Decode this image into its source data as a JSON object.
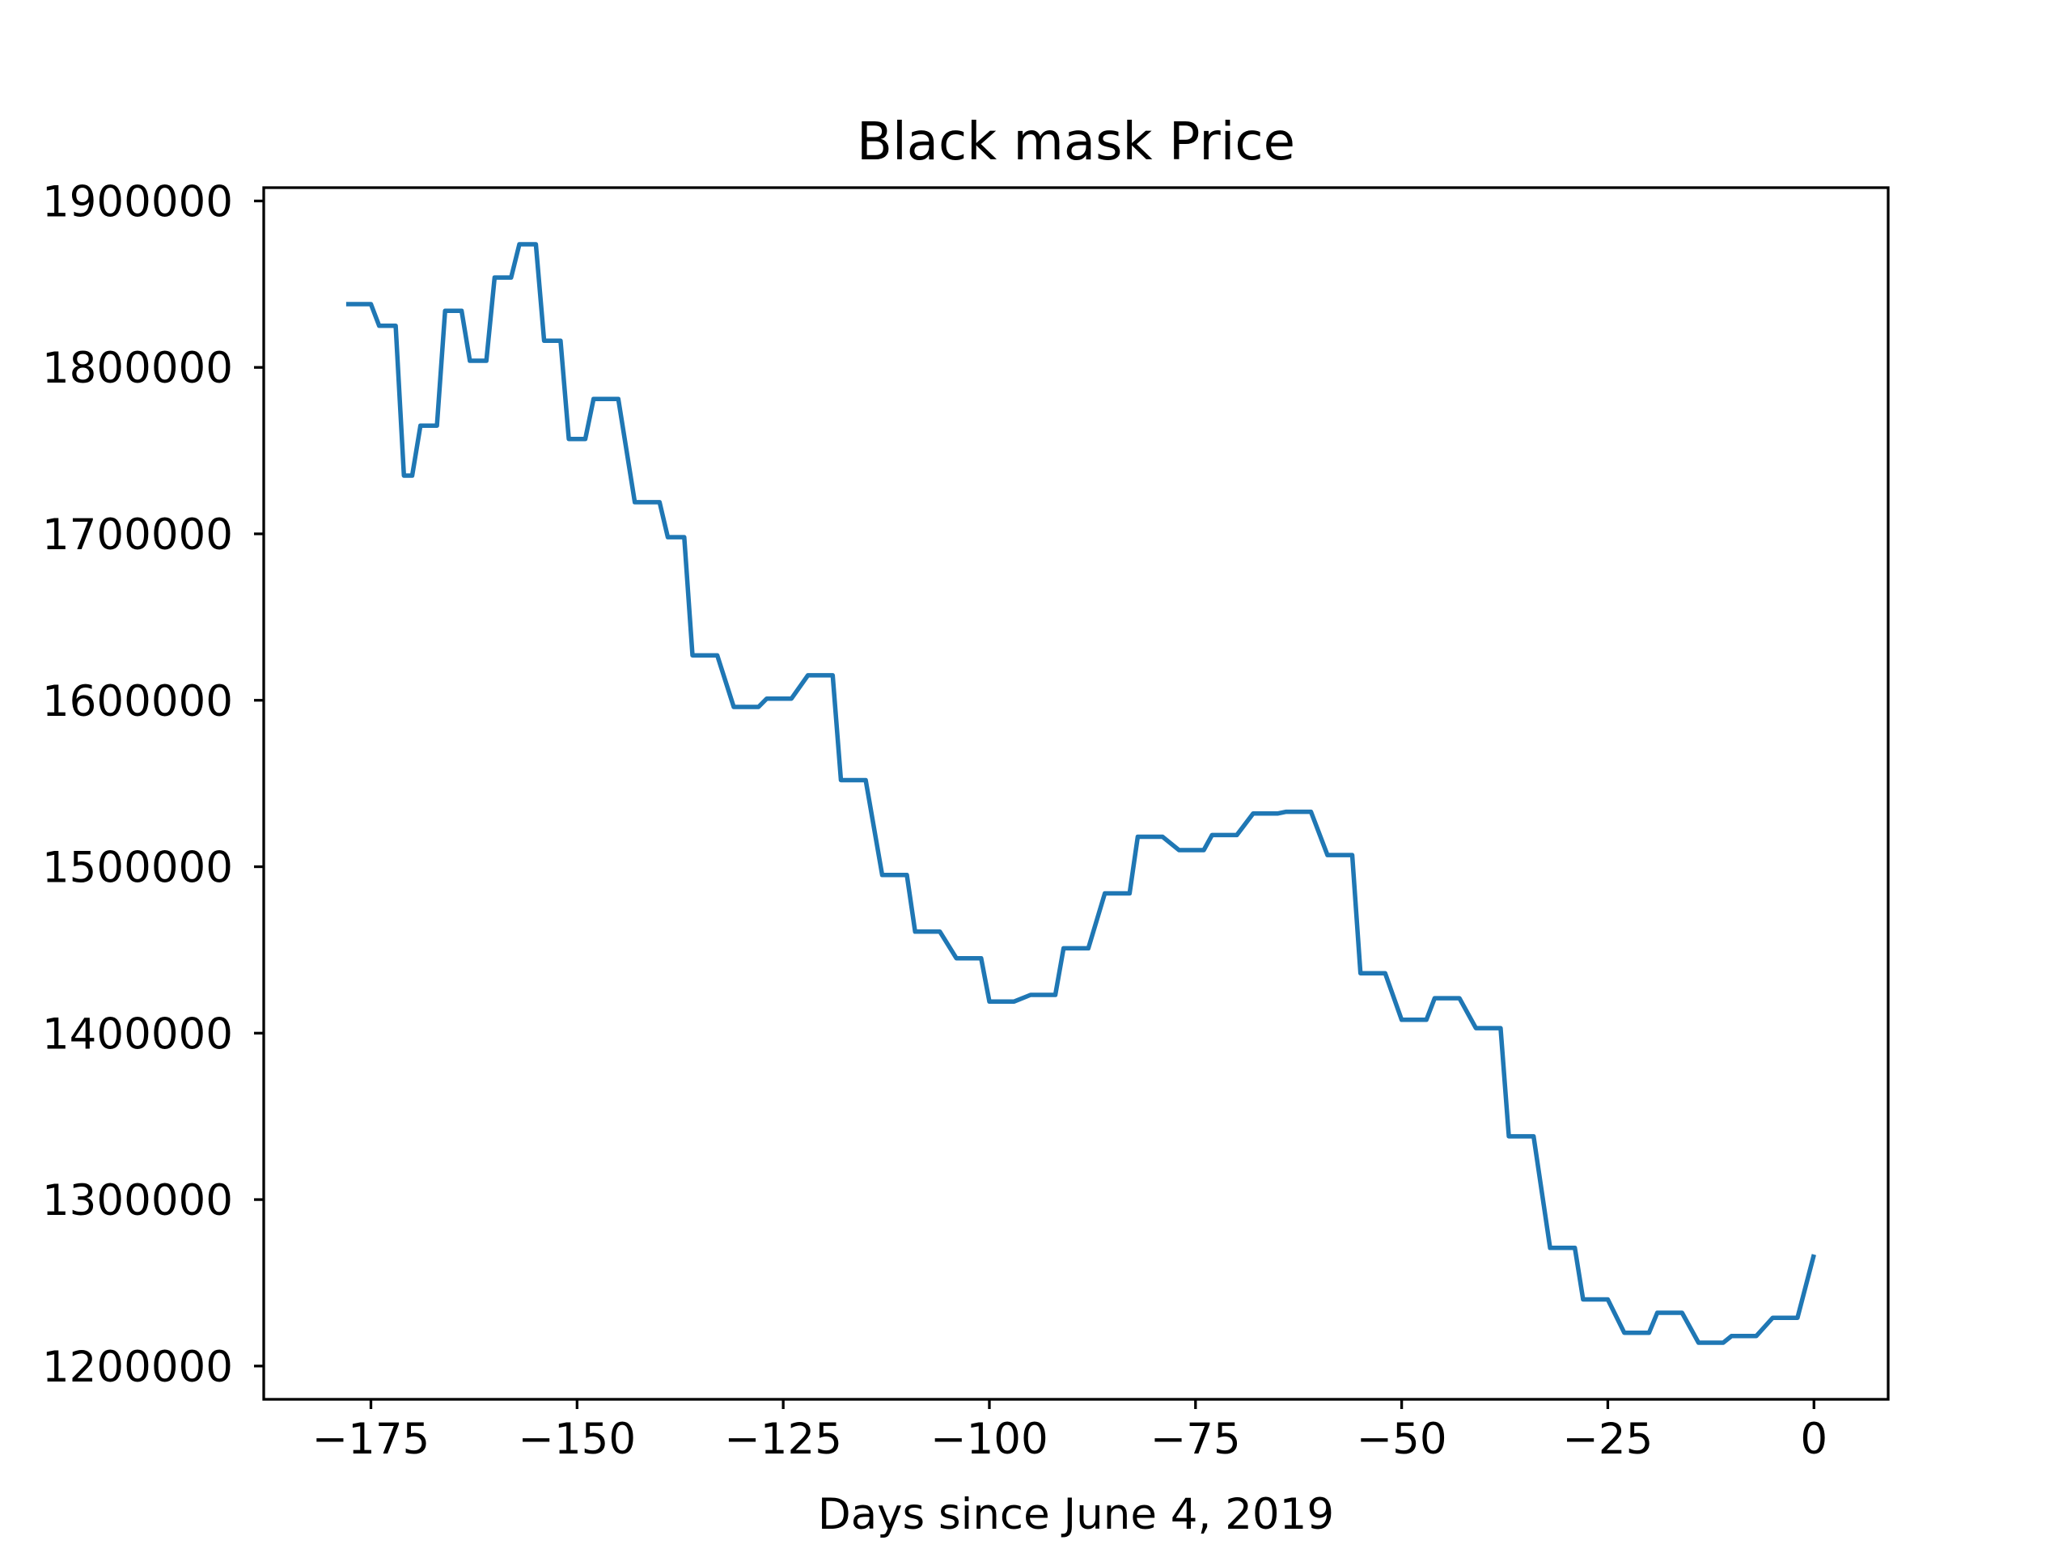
{
  "chart_data": {
    "type": "line",
    "title": "Black mask Price",
    "xlabel": "Days since June 4, 2019",
    "ylabel": "",
    "xlim": [
      -188,
      9
    ],
    "ylim": [
      1180000,
      1908000
    ],
    "grid": false,
    "legend": "none",
    "x_ticks": [
      {
        "value": -175,
        "label": "−175"
      },
      {
        "value": -150,
        "label": "−150"
      },
      {
        "value": -125,
        "label": "−125"
      },
      {
        "value": -100,
        "label": "−100"
      },
      {
        "value": -75,
        "label": "−75"
      },
      {
        "value": -50,
        "label": "−50"
      },
      {
        "value": -25,
        "label": "−25"
      },
      {
        "value": 0,
        "label": "0"
      }
    ],
    "y_ticks": [
      {
        "value": 1200000,
        "label": "1200000"
      },
      {
        "value": 1300000,
        "label": "1300000"
      },
      {
        "value": 1400000,
        "label": "1400000"
      },
      {
        "value": 1500000,
        "label": "1500000"
      },
      {
        "value": 1600000,
        "label": "1600000"
      },
      {
        "value": 1700000,
        "label": "1700000"
      },
      {
        "value": 1800000,
        "label": "1800000"
      },
      {
        "value": 1900000,
        "label": "1900000"
      }
    ],
    "series": [
      {
        "color": "#1f77b4",
        "x": [
          -178,
          -175,
          -174,
          -172,
          -171,
          -170,
          -169,
          -167,
          -166,
          -164,
          -163,
          -161,
          -160,
          -158,
          -157,
          -155,
          -154,
          -152,
          -151,
          -149,
          -148,
          -146,
          -145,
          -143,
          -142,
          -140,
          -139,
          -137,
          -136,
          -134,
          -133,
          -131,
          -130,
          -128,
          -127,
          -125,
          -124,
          -122,
          -121,
          -119,
          -118,
          -116,
          -115,
          -113,
          -112,
          -110,
          -109,
          -107,
          -106,
          -104,
          -103,
          -101,
          -100,
          -98,
          -97,
          -95,
          -94,
          -92,
          -91,
          -89,
          -88,
          -86,
          -85,
          -83,
          -82,
          -80,
          -79,
          -77,
          -76,
          -74,
          -73,
          -71,
          -70,
          -68,
          -67,
          -65,
          -64,
          -62,
          -61,
          -59,
          -58,
          -56,
          -55,
          -53,
          -52,
          -50,
          -49,
          -47,
          -46,
          -44,
          -43,
          -41,
          -40,
          -38,
          -37,
          -35,
          -34,
          -32,
          -31,
          -29,
          -28,
          -26,
          -25,
          -23,
          -22,
          -20,
          -19,
          -17,
          -16,
          -14,
          -13,
          -11,
          -10,
          -8,
          -7,
          -5,
          -4,
          -2,
          0
        ],
        "y": [
          1838000,
          1838000,
          1825000,
          1825000,
          1735000,
          1735000,
          1765000,
          1765000,
          1834000,
          1834000,
          1804000,
          1804000,
          1854000,
          1854000,
          1874000,
          1874000,
          1816000,
          1816000,
          1757000,
          1757000,
          1781000,
          1781000,
          1781000,
          1719000,
          1719000,
          1719000,
          1698000,
          1698000,
          1627000,
          1627000,
          1627000,
          1596000,
          1596000,
          1596000,
          1601000,
          1601000,
          1601000,
          1615000,
          1615000,
          1615000,
          1552000,
          1552000,
          1552000,
          1495000,
          1495000,
          1495000,
          1461000,
          1461000,
          1461000,
          1445000,
          1445000,
          1445000,
          1419000,
          1419000,
          1419000,
          1423000,
          1423000,
          1423000,
          1451000,
          1451000,
          1451000,
          1484000,
          1484000,
          1484000,
          1518000,
          1518000,
          1518000,
          1510000,
          1510000,
          1510000,
          1519000,
          1519000,
          1519000,
          1532000,
          1532000,
          1532000,
          1533000,
          1533000,
          1533000,
          1507000,
          1507000,
          1507000,
          1436000,
          1436000,
          1436000,
          1408000,
          1408000,
          1408000,
          1421000,
          1421000,
          1421000,
          1403000,
          1403000,
          1403000,
          1338000,
          1338000,
          1338000,
          1271000,
          1271000,
          1271000,
          1240000,
          1240000,
          1240000,
          1220000,
          1220000,
          1220000,
          1232000,
          1232000,
          1232000,
          1214000,
          1214000,
          1214000,
          1218000,
          1218000,
          1218000,
          1229000,
          1229000,
          1229000,
          1267000
        ]
      }
    ]
  }
}
